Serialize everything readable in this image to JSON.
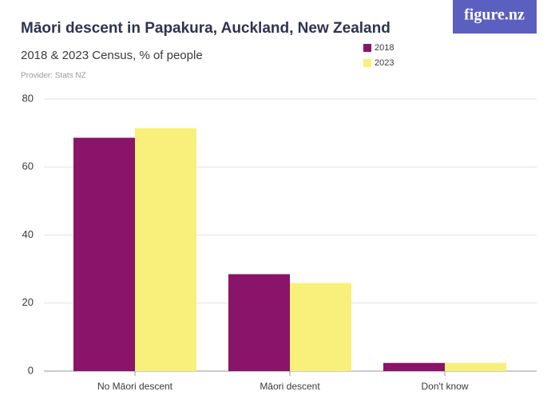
{
  "logo": "figure.nz",
  "chart_data": {
    "type": "bar",
    "title": "Māori descent in Papakura, Auckland, New Zealand",
    "subtitle": "2018 & 2023 Census, % of people",
    "provider": "Provider: Stats NZ",
    "categories": [
      "No Māori descent",
      "Māori descent",
      "Don't know"
    ],
    "series": [
      {
        "name": "2018",
        "color": "#8a1469",
        "values": [
          68.6,
          28.5,
          2.4
        ]
      },
      {
        "name": "2023",
        "color": "#f8f07a",
        "values": [
          71.4,
          25.9,
          2.4
        ]
      }
    ],
    "ylim": [
      0,
      80
    ],
    "yticks": [
      0,
      20,
      40,
      60,
      80
    ],
    "grid": true,
    "legend": "top-right"
  }
}
